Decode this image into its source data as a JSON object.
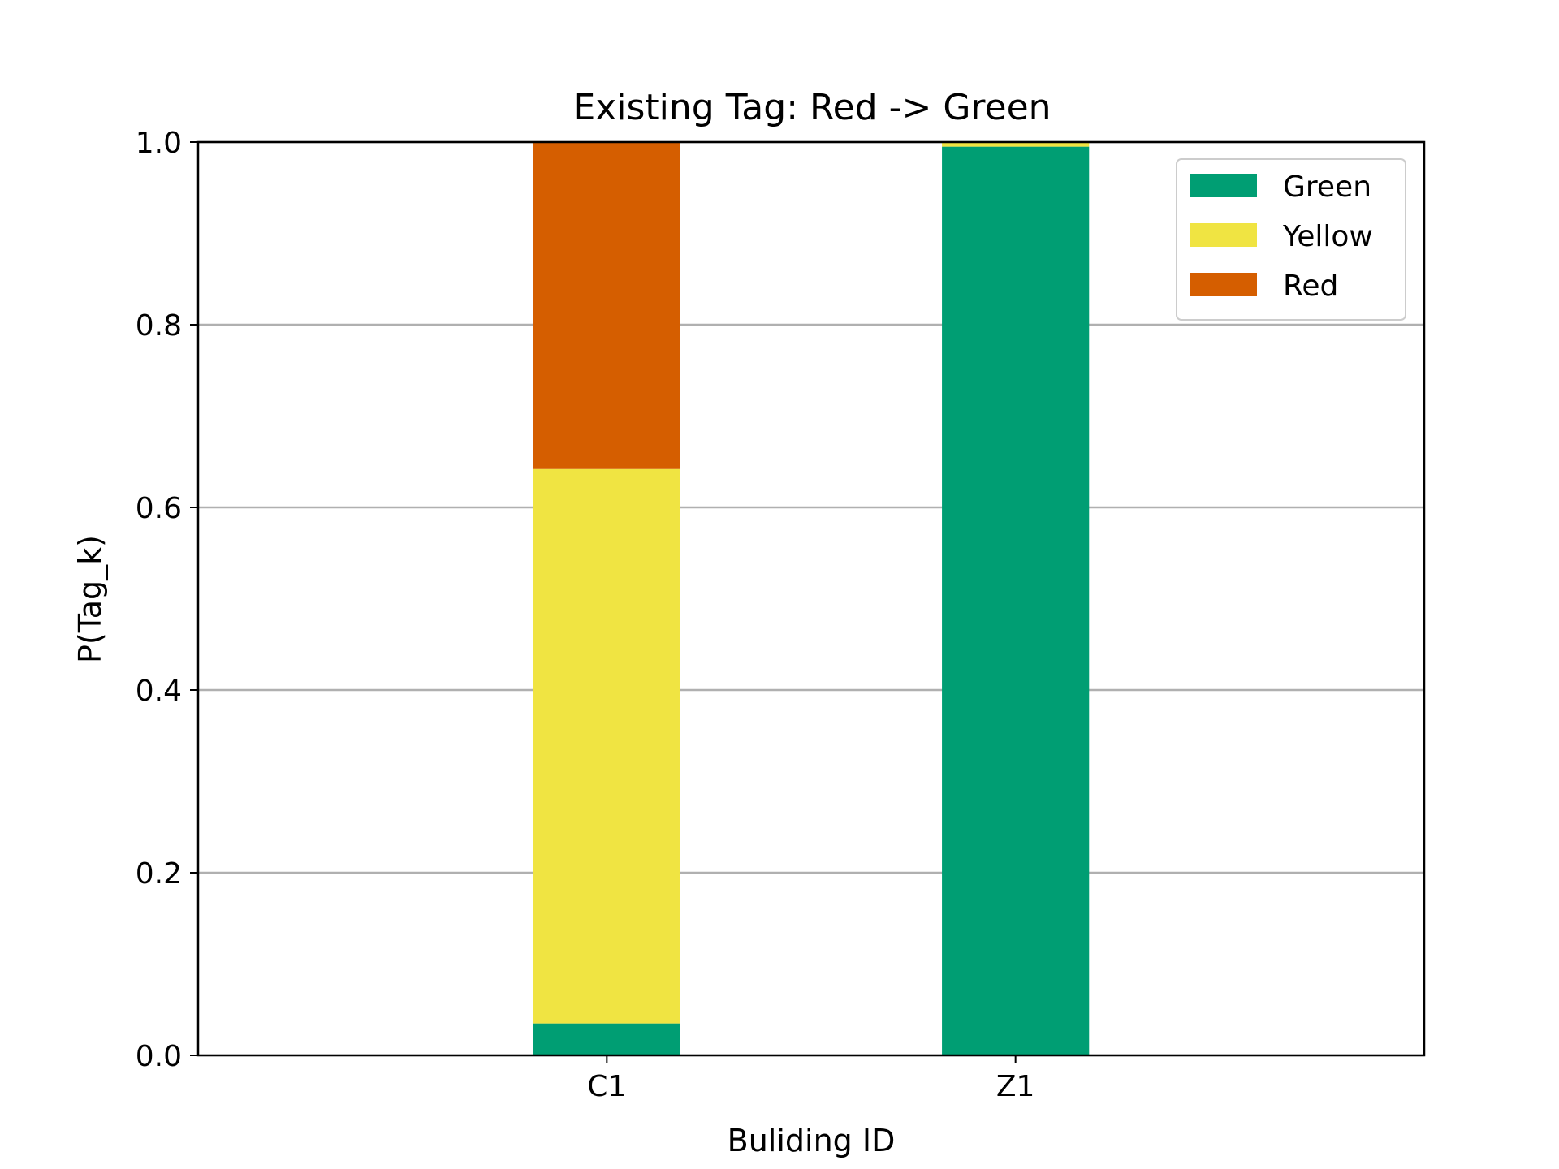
{
  "chart_data": {
    "type": "bar",
    "stacked": true,
    "title": "Existing Tag: Red -> Green",
    "xlabel": "Buliding ID",
    "ylabel": "P(Tag_k)",
    "categories": [
      "C1",
      "Z1"
    ],
    "ylim": [
      0,
      1.0
    ],
    "yticks": [
      "0.0",
      "0.2",
      "0.4",
      "0.6",
      "0.8",
      "1.0"
    ],
    "grid": "y",
    "legend_position": "top-right",
    "series": [
      {
        "name": "Green",
        "color": "#009E73",
        "values": [
          0.035,
          0.995
        ]
      },
      {
        "name": "Yellow",
        "color": "#F0E442",
        "values": [
          0.607,
          0.005
        ]
      },
      {
        "name": "Red",
        "color": "#D55E00",
        "values": [
          0.358,
          0.0
        ]
      }
    ]
  }
}
